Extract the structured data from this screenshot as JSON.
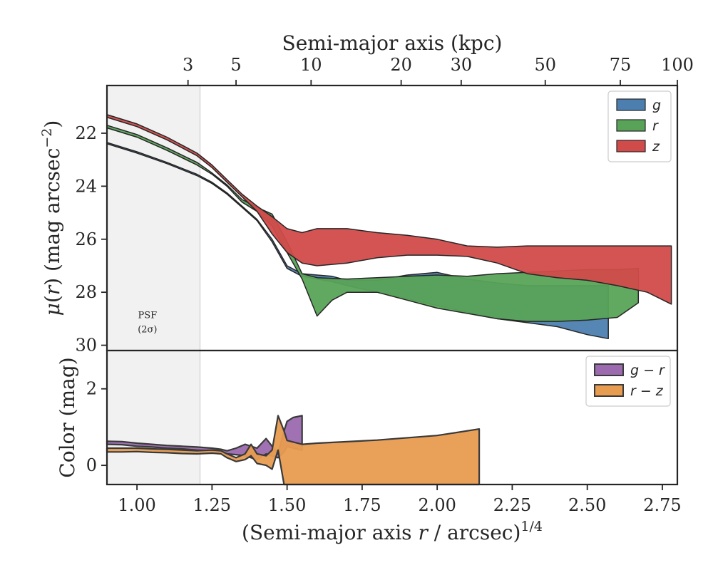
{
  "chart_data": [
    {
      "panel": "surface-brightness",
      "type": "area",
      "xlabel": "(Semi-major axis r / arcsec)^1/4",
      "ylabel": "μ(r) (mag arcsec⁻²)",
      "xlim": [
        0.9,
        2.8
      ],
      "ylim": [
        30.2,
        20.2
      ],
      "y_inverted": true,
      "yticks": [
        22,
        24,
        26,
        28,
        30
      ],
      "top_axis": {
        "label": "Semi-major axis (kpc)",
        "ticks": [
          {
            "label": "3",
            "x": 1.17
          },
          {
            "label": "5",
            "x": 1.33
          },
          {
            "label": "10",
            "x": 1.58
          },
          {
            "label": "20",
            "x": 1.88
          },
          {
            "label": "30",
            "x": 2.08
          },
          {
            "label": "50",
            "x": 2.36
          },
          {
            "label": "75",
            "x": 2.61
          },
          {
            "label": "100",
            "x": 2.8
          }
        ]
      },
      "shaded_region": {
        "x": [
          0.9,
          1.21
        ],
        "label_lines": [
          "PSF",
          "(2σ)"
        ],
        "label_x": 1.035,
        "label_y": 29.3
      },
      "legend": {
        "position": "top-right"
      },
      "series": [
        {
          "name": "g",
          "color": "#4c7fb0",
          "upper": [
            [
              0.9,
              22.35
            ],
            [
              1.0,
              22.7
            ],
            [
              1.1,
              23.1
            ],
            [
              1.2,
              23.55
            ],
            [
              1.25,
              23.85
            ],
            [
              1.3,
              24.25
            ],
            [
              1.35,
              24.75
            ],
            [
              1.4,
              25.25
            ],
            [
              1.45,
              26.0
            ],
            [
              1.5,
              27.0
            ],
            [
              1.55,
              27.3
            ],
            [
              1.6,
              27.35
            ],
            [
              1.65,
              27.4
            ],
            [
              1.7,
              27.55
            ],
            [
              1.8,
              27.55
            ],
            [
              1.9,
              27.35
            ],
            [
              2.0,
              27.25
            ],
            [
              2.1,
              27.5
            ],
            [
              2.2,
              27.65
            ],
            [
              2.3,
              27.75
            ],
            [
              2.4,
              27.75
            ],
            [
              2.5,
              27.75
            ],
            [
              2.57,
              27.75
            ]
          ],
          "lower": [
            [
              0.9,
              22.4
            ],
            [
              1.0,
              22.75
            ],
            [
              1.1,
              23.15
            ],
            [
              1.2,
              23.6
            ],
            [
              1.25,
              23.9
            ],
            [
              1.3,
              24.3
            ],
            [
              1.35,
              24.8
            ],
            [
              1.4,
              25.3
            ],
            [
              1.45,
              26.1
            ],
            [
              1.5,
              27.1
            ],
            [
              1.55,
              27.4
            ],
            [
              1.6,
              27.5
            ],
            [
              1.65,
              27.6
            ],
            [
              1.7,
              27.75
            ],
            [
              1.8,
              28.0
            ],
            [
              1.9,
              28.25
            ],
            [
              2.0,
              28.5
            ],
            [
              2.1,
              28.75
            ],
            [
              2.2,
              29.0
            ],
            [
              2.3,
              29.15
            ],
            [
              2.4,
              29.3
            ],
            [
              2.5,
              29.6
            ],
            [
              2.57,
              29.75
            ]
          ]
        },
        {
          "name": "r",
          "color": "#59a358",
          "upper": [
            [
              0.9,
              21.7
            ],
            [
              1.0,
              22.05
            ],
            [
              1.1,
              22.55
            ],
            [
              1.2,
              23.1
            ],
            [
              1.25,
              23.5
            ],
            [
              1.3,
              23.95
            ],
            [
              1.35,
              24.5
            ],
            [
              1.4,
              24.8
            ],
            [
              1.45,
              25.05
            ],
            [
              1.5,
              26.1
            ],
            [
              1.55,
              27.3
            ],
            [
              1.6,
              27.45
            ],
            [
              1.7,
              27.5
            ],
            [
              1.8,
              27.45
            ],
            [
              1.9,
              27.4
            ],
            [
              2.0,
              27.35
            ],
            [
              2.1,
              27.4
            ],
            [
              2.2,
              27.3
            ],
            [
              2.3,
              27.25
            ],
            [
              2.4,
              27.2
            ],
            [
              2.5,
              27.15
            ],
            [
              2.6,
              27.15
            ],
            [
              2.67,
              27.1
            ]
          ],
          "lower": [
            [
              0.9,
              21.8
            ],
            [
              1.0,
              22.15
            ],
            [
              1.1,
              22.65
            ],
            [
              1.2,
              23.2
            ],
            [
              1.25,
              23.55
            ],
            [
              1.3,
              24.0
            ],
            [
              1.35,
              24.6
            ],
            [
              1.4,
              24.95
            ],
            [
              1.45,
              25.5
            ],
            [
              1.5,
              26.5
            ],
            [
              1.55,
              27.5
            ],
            [
              1.6,
              28.9
            ],
            [
              1.65,
              28.3
            ],
            [
              1.7,
              28.0
            ],
            [
              1.8,
              28.0
            ],
            [
              1.9,
              28.3
            ],
            [
              2.0,
              28.6
            ],
            [
              2.1,
              28.8
            ],
            [
              2.2,
              29.0
            ],
            [
              2.3,
              29.1
            ],
            [
              2.4,
              29.1
            ],
            [
              2.5,
              29.05
            ],
            [
              2.6,
              28.95
            ],
            [
              2.67,
              28.4
            ]
          ]
        },
        {
          "name": "z",
          "color": "#d14b4a",
          "upper": [
            [
              0.9,
              21.3
            ],
            [
              1.0,
              21.65
            ],
            [
              1.1,
              22.15
            ],
            [
              1.2,
              22.75
            ],
            [
              1.25,
              23.2
            ],
            [
              1.3,
              23.75
            ],
            [
              1.35,
              24.3
            ],
            [
              1.4,
              24.75
            ],
            [
              1.45,
              25.15
            ],
            [
              1.5,
              25.6
            ],
            [
              1.55,
              25.75
            ],
            [
              1.6,
              25.6
            ],
            [
              1.7,
              25.6
            ],
            [
              1.8,
              25.75
            ],
            [
              1.9,
              25.85
            ],
            [
              2.0,
              26.0
            ],
            [
              2.1,
              26.25
            ],
            [
              2.2,
              26.3
            ],
            [
              2.3,
              26.25
            ],
            [
              2.4,
              26.25
            ],
            [
              2.5,
              26.25
            ],
            [
              2.6,
              26.25
            ],
            [
              2.78,
              26.25
            ]
          ],
          "lower": [
            [
              0.9,
              21.4
            ],
            [
              1.0,
              21.75
            ],
            [
              1.1,
              22.25
            ],
            [
              1.2,
              22.85
            ],
            [
              1.25,
              23.3
            ],
            [
              1.3,
              23.85
            ],
            [
              1.35,
              24.4
            ],
            [
              1.4,
              24.95
            ],
            [
              1.45,
              25.8
            ],
            [
              1.5,
              26.5
            ],
            [
              1.55,
              26.9
            ],
            [
              1.6,
              27.0
            ],
            [
              1.7,
              26.9
            ],
            [
              1.8,
              26.7
            ],
            [
              1.9,
              26.6
            ],
            [
              2.0,
              26.6
            ],
            [
              2.1,
              26.65
            ],
            [
              2.2,
              26.9
            ],
            [
              2.3,
              27.3
            ],
            [
              2.4,
              27.45
            ],
            [
              2.5,
              27.55
            ],
            [
              2.6,
              27.75
            ],
            [
              2.7,
              28.0
            ],
            [
              2.78,
              28.45
            ]
          ]
        }
      ]
    },
    {
      "panel": "color-profile",
      "type": "area",
      "xlabel": "(Semi-major axis r / arcsec)^1/4",
      "ylabel": "Color (mag)",
      "xlim": [
        0.9,
        2.8
      ],
      "ylim": [
        -0.5,
        3.0
      ],
      "yticks": [
        0,
        2
      ],
      "xticks": [
        1.0,
        1.25,
        1.5,
        1.75,
        2.0,
        2.25,
        2.5,
        2.75
      ],
      "xtick_labels": [
        "1.00",
        "1.25",
        "1.50",
        "1.75",
        "2.00",
        "2.25",
        "2.50",
        "2.75"
      ],
      "legend": {
        "position": "top-right"
      },
      "series": [
        {
          "name": "g − r",
          "color": "#9c6aaf",
          "upper": [
            [
              0.9,
              0.63
            ],
            [
              0.95,
              0.62
            ],
            [
              1.0,
              0.58
            ],
            [
              1.05,
              0.55
            ],
            [
              1.1,
              0.52
            ],
            [
              1.15,
              0.5
            ],
            [
              1.2,
              0.48
            ],
            [
              1.25,
              0.45
            ],
            [
              1.28,
              0.42
            ],
            [
              1.3,
              0.38
            ],
            [
              1.33,
              0.45
            ],
            [
              1.36,
              0.55
            ],
            [
              1.4,
              0.45
            ],
            [
              1.43,
              0.7
            ],
            [
              1.45,
              0.5
            ],
            [
              1.47,
              0.3
            ],
            [
              1.49,
              0.9
            ],
            [
              1.5,
              1.15
            ],
            [
              1.52,
              1.25
            ],
            [
              1.55,
              1.3
            ]
          ],
          "lower": [
            [
              0.9,
              0.55
            ],
            [
              0.95,
              0.54
            ],
            [
              1.0,
              0.5
            ],
            [
              1.05,
              0.48
            ],
            [
              1.1,
              0.45
            ],
            [
              1.15,
              0.43
            ],
            [
              1.2,
              0.4
            ],
            [
              1.25,
              0.38
            ],
            [
              1.28,
              0.35
            ],
            [
              1.3,
              0.3
            ],
            [
              1.33,
              0.28
            ],
            [
              1.36,
              0.25
            ],
            [
              1.4,
              0.15
            ],
            [
              1.43,
              0.3
            ],
            [
              1.45,
              0.25
            ],
            [
              1.47,
              0.2
            ],
            [
              1.49,
              0.35
            ],
            [
              1.5,
              0.5
            ],
            [
              1.52,
              0.45
            ],
            [
              1.55,
              0.4
            ]
          ]
        },
        {
          "name": "r − z",
          "color": "#e89c50",
          "upper": [
            [
              0.9,
              0.45
            ],
            [
              0.95,
              0.45
            ],
            [
              1.0,
              0.45
            ],
            [
              1.05,
              0.43
            ],
            [
              1.1,
              0.42
            ],
            [
              1.15,
              0.4
            ],
            [
              1.2,
              0.38
            ],
            [
              1.25,
              0.4
            ],
            [
              1.28,
              0.38
            ],
            [
              1.3,
              0.3
            ],
            [
              1.33,
              0.2
            ],
            [
              1.36,
              0.3
            ],
            [
              1.38,
              0.55
            ],
            [
              1.4,
              0.3
            ],
            [
              1.43,
              0.25
            ],
            [
              1.45,
              0.4
            ],
            [
              1.47,
              1.3
            ],
            [
              1.49,
              0.9
            ],
            [
              1.5,
              0.65
            ],
            [
              1.55,
              0.55
            ],
            [
              1.6,
              0.58
            ],
            [
              1.8,
              0.66
            ],
            [
              2.0,
              0.78
            ],
            [
              2.14,
              0.95
            ]
          ],
          "lower": [
            [
              0.9,
              0.35
            ],
            [
              0.95,
              0.35
            ],
            [
              1.0,
              0.36
            ],
            [
              1.05,
              0.34
            ],
            [
              1.1,
              0.33
            ],
            [
              1.15,
              0.31
            ],
            [
              1.2,
              0.3
            ],
            [
              1.25,
              0.32
            ],
            [
              1.28,
              0.3
            ],
            [
              1.3,
              0.2
            ],
            [
              1.33,
              0.1
            ],
            [
              1.36,
              0.15
            ],
            [
              1.38,
              0.25
            ],
            [
              1.4,
              0.05
            ],
            [
              1.43,
              0.0
            ],
            [
              1.45,
              -0.1
            ],
            [
              1.47,
              0.4
            ],
            [
              1.49,
              -0.5
            ],
            [
              1.5,
              -0.5
            ],
            [
              1.6,
              -0.5
            ],
            [
              1.8,
              -0.5
            ],
            [
              2.0,
              -0.5
            ],
            [
              2.14,
              -0.5
            ]
          ]
        }
      ]
    }
  ]
}
